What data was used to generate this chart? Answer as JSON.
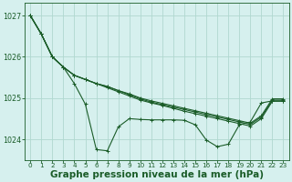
{
  "bg_color": "#d6f0ee",
  "grid_color": "#b0d8d0",
  "line_color": "#1a5c28",
  "xlabel": "Graphe pression niveau de la mer (hPa)",
  "xlabel_fontsize": 7.5,
  "ylim": [
    1023.5,
    1027.3
  ],
  "xlim": [
    -0.5,
    23.5
  ],
  "yticks": [
    1024,
    1025,
    1026,
    1027
  ],
  "xticks": [
    0,
    1,
    2,
    3,
    4,
    5,
    6,
    7,
    8,
    9,
    10,
    11,
    12,
    13,
    14,
    15,
    16,
    17,
    18,
    19,
    20,
    21,
    22,
    23
  ],
  "series": [
    [
      1027.0,
      1026.55,
      1026.0,
      1025.75,
      1025.35,
      1024.85,
      1023.75,
      1023.72,
      1024.3,
      1024.5,
      1024.48,
      1024.47,
      1024.47,
      1024.47,
      1024.46,
      1024.35,
      1023.98,
      1023.82,
      1023.88,
      1024.35,
      1024.42,
      1024.88,
      1024.93,
      1024.93
    ],
    [
      1027.0,
      1026.55,
      1026.0,
      1025.75,
      1025.55,
      1025.45,
      1025.35,
      1025.25,
      1025.15,
      1025.05,
      1024.95,
      1024.88,
      1024.82,
      1024.75,
      1024.68,
      1024.62,
      1024.56,
      1024.5,
      1024.44,
      1024.38,
      1024.32,
      1024.5,
      1024.92,
      1024.92
    ],
    [
      1027.0,
      1026.55,
      1026.0,
      1025.75,
      1025.55,
      1025.45,
      1025.35,
      1025.28,
      1025.18,
      1025.08,
      1024.98,
      1024.9,
      1024.84,
      1024.78,
      1024.72,
      1024.66,
      1024.6,
      1024.54,
      1024.48,
      1024.42,
      1024.36,
      1024.54,
      1024.95,
      1024.95
    ],
    [
      1027.0,
      1026.55,
      1026.0,
      1025.75,
      1025.55,
      1025.45,
      1025.35,
      1025.28,
      1025.18,
      1025.1,
      1025.0,
      1024.93,
      1024.87,
      1024.81,
      1024.75,
      1024.69,
      1024.63,
      1024.57,
      1024.51,
      1024.45,
      1024.39,
      1024.57,
      1024.98,
      1024.98
    ]
  ]
}
